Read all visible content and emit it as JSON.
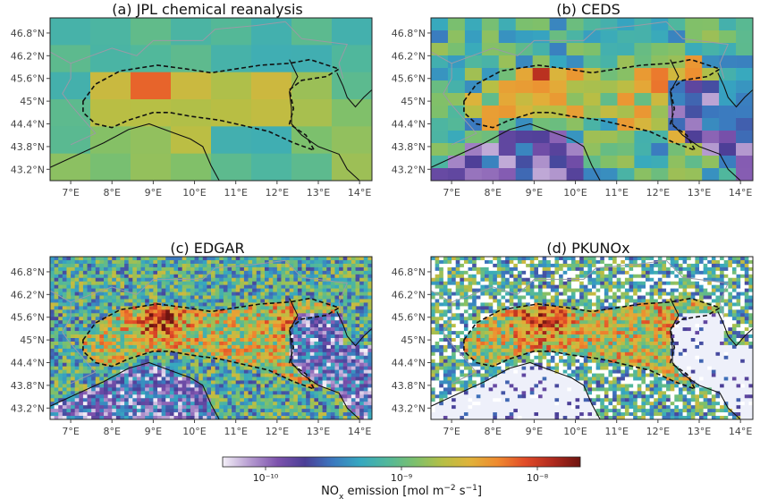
{
  "panels": [
    {
      "id": "a",
      "title": "(a) JPL chemical reanalysis",
      "resolution": "coarse"
    },
    {
      "id": "b",
      "title": "(b) CEDS",
      "resolution": "medium"
    },
    {
      "id": "c",
      "title": "(c) EDGAR",
      "resolution": "fine"
    },
    {
      "id": "d",
      "title": "(d) PKUNOx",
      "resolution": "fine_sparse"
    }
  ],
  "lon_ticks": [
    "7°E",
    "8°E",
    "9°E",
    "10°E",
    "11°E",
    "12°E",
    "13°E",
    "14°E"
  ],
  "lat_ticks": [
    "46.8°N",
    "46.2°N",
    "45.6°N",
    "45°N",
    "44.4°N",
    "43.8°N",
    "43.2°N"
  ],
  "colorbar": {
    "tick_labels": [
      "10⁻¹⁰",
      "10⁻⁹",
      "10⁻⁸"
    ],
    "label_prefix": "NO",
    "label_sub": "x",
    "label_rest": " emission [mol m",
    "label_exp1": "−2",
    "label_mid": " s",
    "label_exp2": "−1",
    "label_end": "]",
    "scale": "log",
    "colormap_stops": [
      "#f4f0f8",
      "#b59bd0",
      "#7d52ad",
      "#4a3e96",
      "#3b78bf",
      "#36a8c0",
      "#52b89a",
      "#7dc06c",
      "#b6bf45",
      "#e0b23a",
      "#ef8a2f",
      "#e14b28",
      "#b02a1e",
      "#6e1410"
    ]
  },
  "legend_elements": {
    "region_outline": "dashed",
    "coastline": "solid",
    "borders": "gray"
  }
}
